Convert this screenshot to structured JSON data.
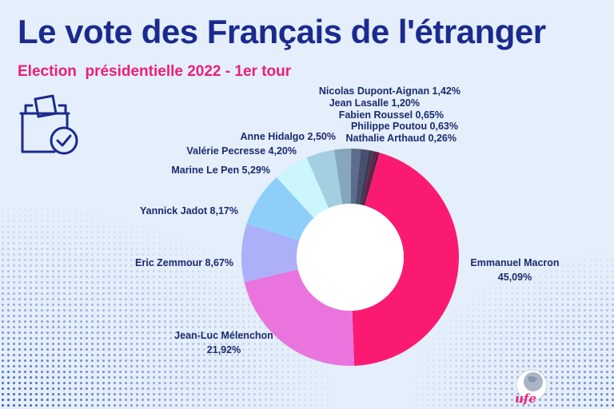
{
  "title": "Le vote des Français de l'étranger",
  "subtitle": "Election  présidentielle 2022 - 1er tour",
  "logo": {
    "text": "ufe"
  },
  "icon": "ballot-box-check-icon",
  "chart_data": {
    "type": "pie",
    "donut": true,
    "title": "Le vote des Français de l'étranger",
    "subtitle": "Election  présidentielle 2022 - 1er tour",
    "slices": [
      {
        "name": "Emmanuel Macron",
        "value": 45.09,
        "label": [
          "Emmanuel Macron",
          "45,09%"
        ],
        "color": "#fb1a72"
      },
      {
        "name": "Jean-Luc Mélenchon",
        "value": 21.92,
        "label": [
          "Jean-Luc Mélenchon",
          "21,92%"
        ],
        "color": "#ea74de"
      },
      {
        "name": "Eric Zemmour",
        "value": 8.67,
        "label": [
          "Eric Zemmour 8,67%"
        ],
        "color": "#abb0f8"
      },
      {
        "name": "Yannick Jadot",
        "value": 8.17,
        "label": [
          "Yannick Jadot 8,17%"
        ],
        "color": "#8ecff9"
      },
      {
        "name": "Marine Le Pen",
        "value": 5.29,
        "label": [
          "Marine Le Pen 5,29%"
        ],
        "color": "#cbf6fd"
      },
      {
        "name": "Valérie Pecresse",
        "value": 4.2,
        "label": [
          "Valérie Pecresse 4,20%"
        ],
        "color": "#a3cfe0"
      },
      {
        "name": "Anne Hidalgo",
        "value": 2.5,
        "label": [
          "Anne Hidalgo 2,50%"
        ],
        "color": "#86a6be"
      },
      {
        "name": "Nicolas Dupont-Aignan",
        "value": 1.42,
        "label": [
          "Nicolas Dupont-Aignan 1,42%"
        ],
        "color": "#5b6c8c"
      },
      {
        "name": "Jean Lasalle",
        "value": 1.2,
        "label": [
          "Jean Lasalle 1,20%"
        ],
        "color": "#485070"
      },
      {
        "name": "Fabien Roussel",
        "value": 0.65,
        "label": [
          "Fabien Roussel 0,65%"
        ],
        "color": "#3a3c57"
      },
      {
        "name": "Philippe Poutou",
        "value": 0.63,
        "label": [
          "Philippe Poutou 0,63%"
        ],
        "color": "#6a2048"
      },
      {
        "name": "Nathalie Arthaud",
        "value": 0.26,
        "label": [
          "Nathalie Arthaud 0,26%"
        ],
        "color": "#262637"
      }
    ]
  }
}
